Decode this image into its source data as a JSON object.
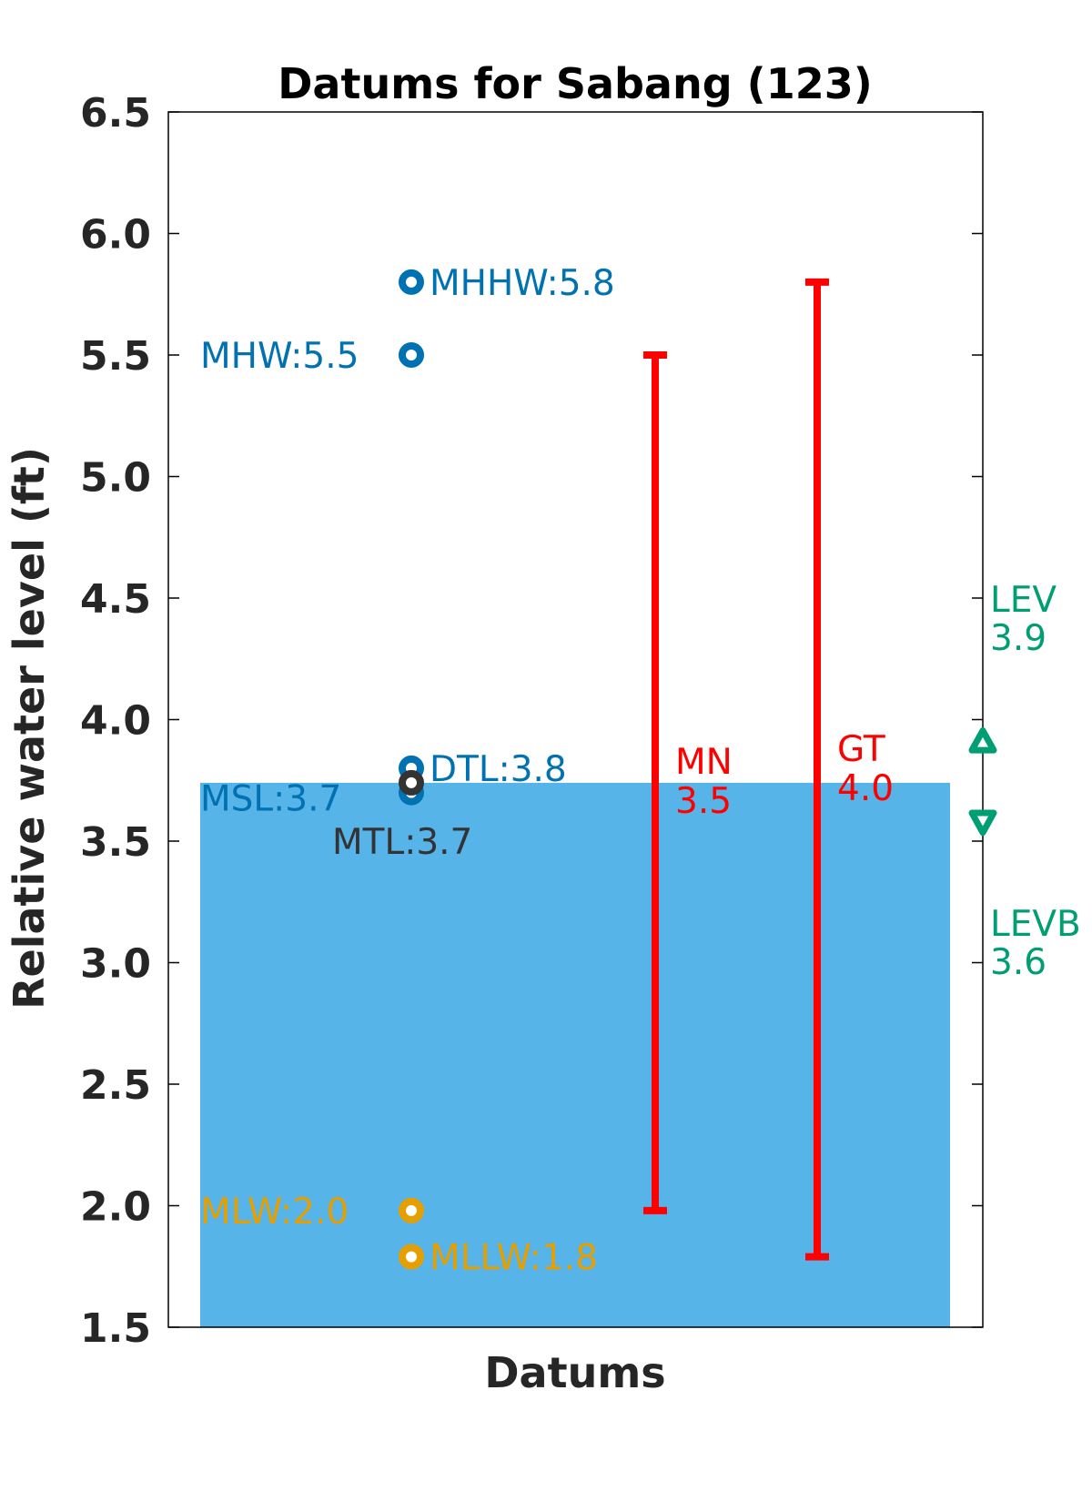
{
  "chart_data": {
    "type": "scatter",
    "title": "Datums for Sabang (123)",
    "xlabel": "Datums",
    "ylabel": "Relative water level (ft)",
    "ylim": [
      1.5,
      6.5
    ],
    "yticks": [
      "1.5",
      "2.0",
      "2.5",
      "3.0",
      "3.5",
      "4.0",
      "4.5",
      "5.0",
      "5.5",
      "6.0",
      "6.5"
    ],
    "grid": false,
    "colors": {
      "high": "#0072b2",
      "low": "#e69f00",
      "mtl": "#333333",
      "range": "#ff0000",
      "extreme": "#009e73",
      "fill": "#56b4e9"
    },
    "msl_fill": {
      "from": 1.5,
      "to": 3.74
    },
    "datums": [
      {
        "name": "MHHW",
        "value": 5.8,
        "label": "MHHW:5.8",
        "group": "high",
        "label_side": "right"
      },
      {
        "name": "MHW",
        "value": 5.5,
        "label": "MHW:5.5",
        "group": "high",
        "label_side": "left"
      },
      {
        "name": "DTL",
        "value": 3.8,
        "label": "DTL:3.8",
        "group": "high",
        "label_side": "right"
      },
      {
        "name": "MSL",
        "value": 3.7,
        "label": "MSL:3.7",
        "group": "high",
        "label_side": "left"
      },
      {
        "name": "MTL",
        "value": 3.74,
        "label": "MTL:3.7",
        "group": "mtl",
        "label_side": "below"
      },
      {
        "name": "MLW",
        "value": 1.98,
        "label": "MLW:2.0",
        "group": "low",
        "label_side": "left"
      },
      {
        "name": "MLLW",
        "value": 1.79,
        "label": "MLLW:1.8",
        "group": "low",
        "label_side": "right"
      }
    ],
    "ranges": [
      {
        "name": "MN",
        "from": 1.98,
        "to": 5.5,
        "label_line1": "MN",
        "label_line2": "3.5"
      },
      {
        "name": "GT",
        "from": 1.79,
        "to": 5.8,
        "label_line1": "GT",
        "label_line2": "4.0"
      }
    ],
    "extremes": [
      {
        "name": "LEV",
        "value": 3.91,
        "marker": "triangle-up",
        "label_line1": "LEV",
        "label_line2": "3.9"
      },
      {
        "name": "LEVB",
        "value": 3.58,
        "marker": "triangle-down",
        "label_line1": "LEVB",
        "label_line2": "3.6"
      }
    ]
  }
}
